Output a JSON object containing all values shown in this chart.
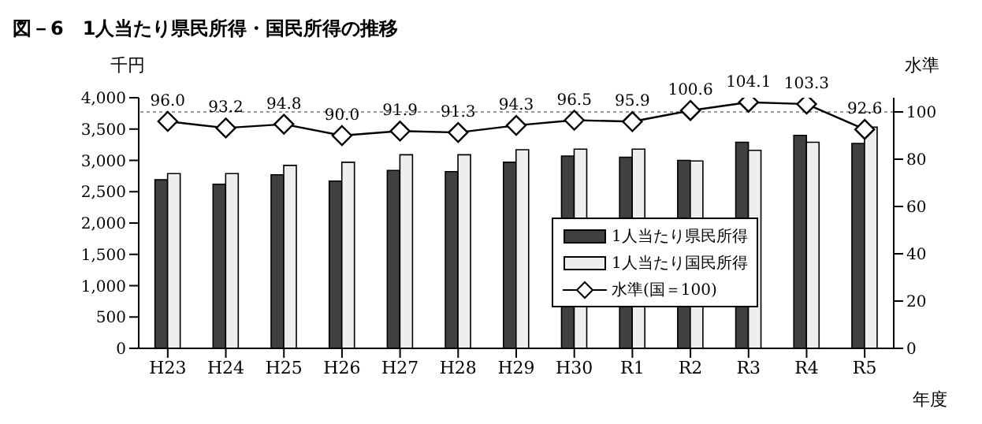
{
  "chart_data": {
    "type": "bar",
    "title": "図－6　1人当たり県民所得・国民所得の推移",
    "ylabel": "千円",
    "y2label": "水準",
    "xlabel": "年度",
    "categories": [
      "H23",
      "H24",
      "H25",
      "H26",
      "H27",
      "H28",
      "H29",
      "H30",
      "R1",
      "R2",
      "R3",
      "R4",
      "R5"
    ],
    "series": [
      {
        "name": "1人当たり県民所得",
        "color": "#404040",
        "values": [
          2690,
          2620,
          2770,
          2670,
          2840,
          2820,
          2970,
          3070,
          3050,
          3000,
          3290,
          3400,
          3270
        ]
      },
      {
        "name": "1人当たり国民所得",
        "color": "#eeeeee",
        "values": [
          2790,
          2790,
          2920,
          2970,
          3090,
          3090,
          3170,
          3180,
          3180,
          2990,
          3160,
          3290,
          3530
        ]
      },
      {
        "name": "水準(国＝100)",
        "type": "line",
        "axis": "y2",
        "color": "#000000",
        "marker": "diamond",
        "values": [
          96.0,
          93.2,
          94.8,
          90.0,
          91.9,
          91.3,
          94.3,
          96.5,
          95.9,
          100.6,
          104.1,
          103.3,
          92.6
        ],
        "value_labels": [
          "96.0",
          "93.2",
          "94.8",
          "90.0",
          "91.9",
          "91.3",
          "94.3",
          "96.5",
          "95.9",
          "100.6",
          "104.1",
          "103.3",
          "92.6"
        ]
      }
    ],
    "ylim": [
      0,
      4000
    ],
    "yticks": [
      0,
      {
        "value": 500,
        "label": "500"
      },
      {
        "value": 1000,
        "label": "1,000"
      },
      {
        "value": 1500,
        "label": "1,500"
      },
      {
        "value": 2000,
        "label": "2,000"
      },
      {
        "value": 2500,
        "label": "2,500"
      },
      {
        "value": 3000,
        "label": "3,000"
      },
      {
        "value": 3500,
        "label": "3,500"
      },
      {
        "value": 4000,
        "label": "4,000"
      }
    ],
    "y2lim": [
      0,
      106
    ],
    "y2ticks": [
      0,
      20,
      40,
      60,
      80,
      100
    ],
    "ref_lines": [
      {
        "axis": "y2",
        "value": 100,
        "color": "#999999",
        "line_style": "dotted"
      }
    ],
    "legend": "bottom right",
    "grid": false
  }
}
